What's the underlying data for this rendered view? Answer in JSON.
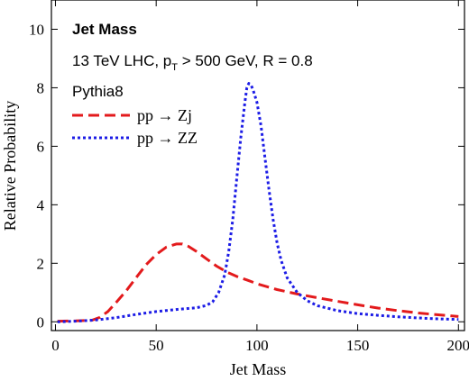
{
  "chart_data": {
    "type": "line",
    "title": "Jet Mass",
    "annotations": {
      "line1_prefix": "13 TeV LHC, p",
      "line1_sub": "T",
      "line1_suffix": " > 500 GeV, R = 0.8",
      "line2": "Pythia8"
    },
    "xlabel": "Jet Mass",
    "ylabel": "Relative Probability",
    "xlim": [
      -2,
      203
    ],
    "ylim": [
      -0.3,
      11
    ],
    "x_ticks": [
      {
        "value": 0,
        "label": "0"
      },
      {
        "value": 50,
        "label": "50"
      },
      {
        "value": 100,
        "label": "100"
      },
      {
        "value": 150,
        "label": "150"
      },
      {
        "value": 200,
        "label": "200"
      }
    ],
    "y_ticks": [
      {
        "value": 0,
        "label": "0"
      },
      {
        "value": 2,
        "label": "2"
      },
      {
        "value": 4,
        "label": "4"
      },
      {
        "value": 6,
        "label": "6"
      },
      {
        "value": 8,
        "label": "8"
      },
      {
        "value": 10,
        "label": "10"
      }
    ],
    "grid": false,
    "legend_position": "top-left",
    "series": [
      {
        "name": "pp → Zj",
        "color": "#e31a1c",
        "dash": "dashed",
        "x": [
          1,
          10,
          18,
          22,
          26,
          30,
          35,
          40,
          45,
          50,
          55,
          60,
          63,
          66,
          70,
          75,
          80,
          85,
          90,
          95,
          100,
          105,
          110,
          120,
          130,
          140,
          150,
          160,
          170,
          180,
          190,
          200
        ],
        "y": [
          0.02,
          0.03,
          0.05,
          0.15,
          0.35,
          0.65,
          1.05,
          1.5,
          1.95,
          2.3,
          2.55,
          2.66,
          2.66,
          2.58,
          2.4,
          2.15,
          1.9,
          1.7,
          1.55,
          1.43,
          1.3,
          1.2,
          1.1,
          0.95,
          0.82,
          0.7,
          0.58,
          0.47,
          0.38,
          0.3,
          0.24,
          0.18
        ]
      },
      {
        "name": "pp → ZZ",
        "color": "#1c1ce6",
        "dash": "dotted",
        "x": [
          1,
          10,
          20,
          30,
          40,
          50,
          60,
          70,
          75,
          78,
          81,
          84,
          86,
          88,
          90,
          92,
          94,
          95,
          96,
          97,
          98,
          100,
          102,
          104,
          106,
          108,
          110,
          112,
          115,
          120,
          125,
          130,
          140,
          150,
          160,
          170,
          180,
          190,
          200
        ],
        "y": [
          0.0,
          0.02,
          0.06,
          0.14,
          0.25,
          0.35,
          0.42,
          0.48,
          0.56,
          0.68,
          1.0,
          1.6,
          2.4,
          3.5,
          4.9,
          6.3,
          7.5,
          8.0,
          8.15,
          8.1,
          7.95,
          7.5,
          6.7,
          5.6,
          4.5,
          3.5,
          2.7,
          2.1,
          1.5,
          1.0,
          0.72,
          0.55,
          0.38,
          0.28,
          0.22,
          0.17,
          0.13,
          0.1,
          0.08
        ]
      }
    ]
  }
}
